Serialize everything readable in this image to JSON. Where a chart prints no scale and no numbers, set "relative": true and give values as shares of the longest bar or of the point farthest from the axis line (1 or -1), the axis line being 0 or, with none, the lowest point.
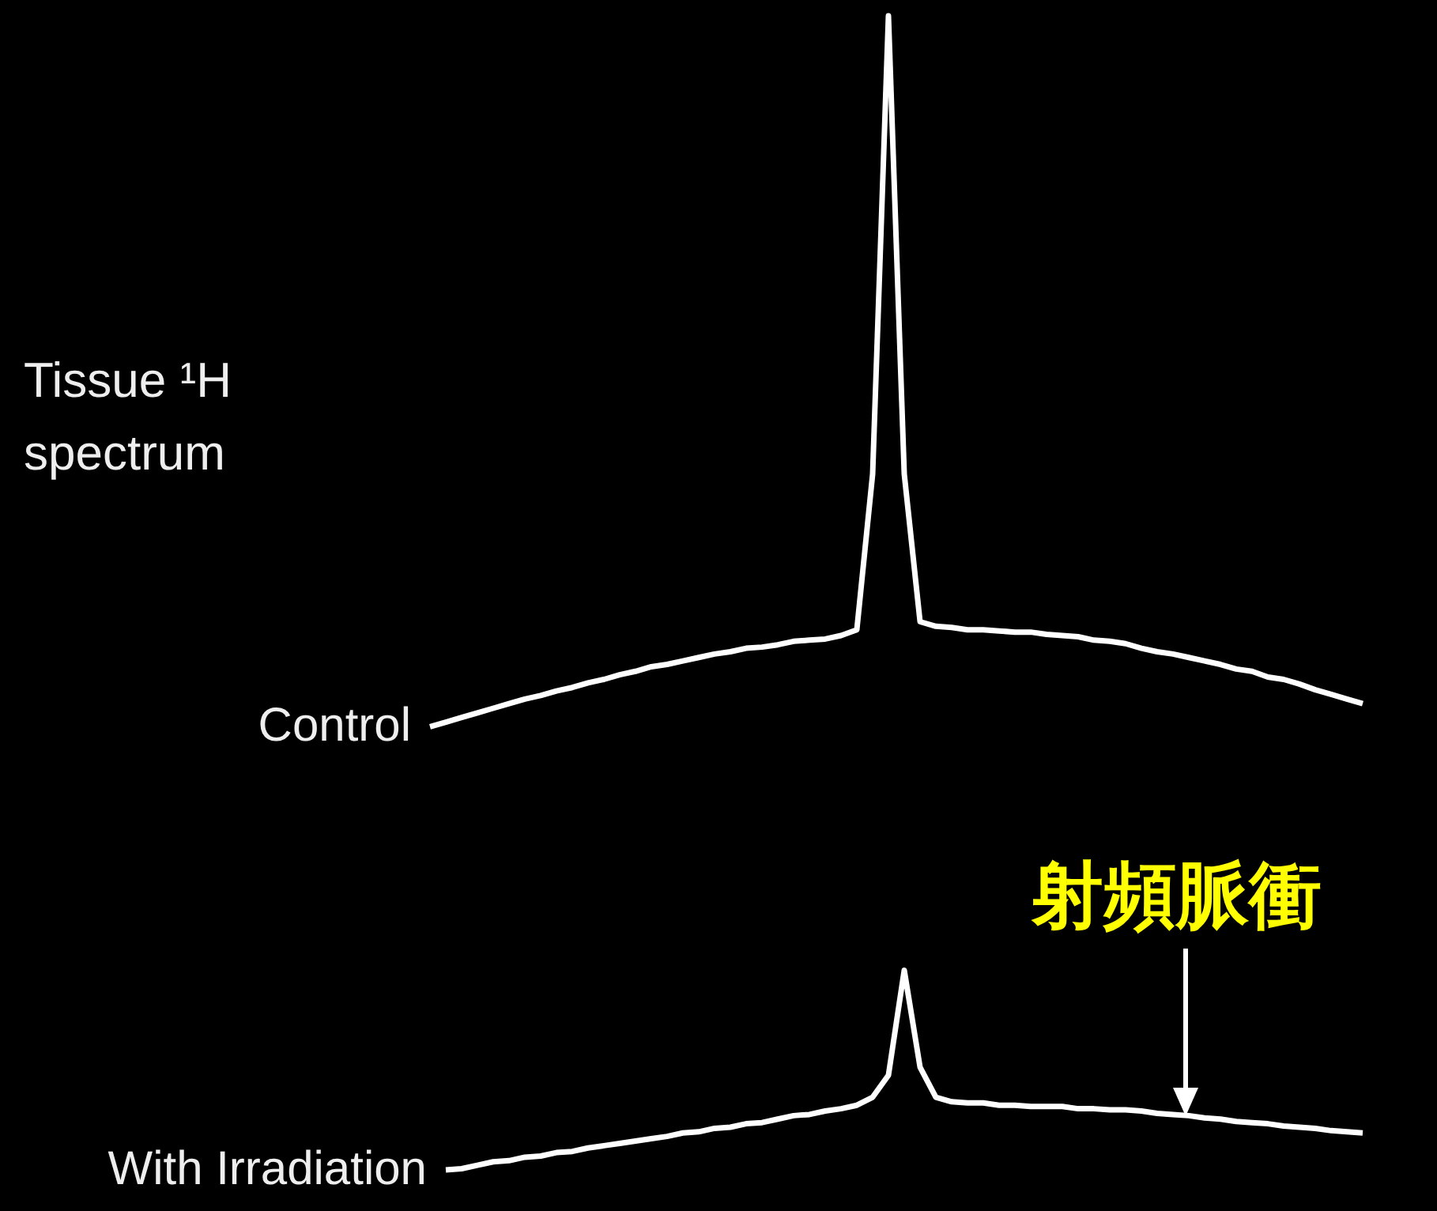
{
  "chart_data": {
    "type": "line",
    "title": "Tissue ¹H spectrum",
    "relative": true,
    "categories": [
      null,
      null,
      null,
      null,
      null,
      null,
      null,
      null,
      null,
      null,
      null,
      null,
      null,
      null,
      null,
      null,
      null,
      null,
      null,
      null,
      null,
      null,
      null,
      null,
      null,
      null,
      null,
      null,
      null,
      null,
      null,
      null,
      null,
      null,
      null,
      null,
      null,
      null,
      null,
      null,
      null,
      null,
      null,
      null,
      null,
      null,
      null,
      null,
      null,
      null,
      null,
      null,
      null,
      null,
      null,
      null,
      null,
      null,
      null,
      null
    ],
    "series": [
      {
        "name": "Control",
        "color": "#ffffff",
        "values": [
          0.384,
          0.388,
          0.392,
          0.396,
          0.4,
          0.404,
          0.408,
          0.411,
          0.415,
          0.418,
          0.422,
          0.425,
          0.429,
          0.432,
          0.436,
          0.438,
          0.441,
          0.444,
          0.447,
          0.449,
          0.452,
          0.453,
          0.455,
          0.458,
          0.459,
          0.46,
          0.463,
          0.468,
          0.603,
          1,
          0.603,
          0.475,
          0.471,
          0.47,
          0.468,
          0.468,
          0.467,
          0.466,
          0.466,
          0.464,
          0.463,
          0.462,
          0.459,
          0.458,
          0.456,
          0.452,
          0.449,
          0.447,
          0.444,
          0.441,
          0.438,
          0.434,
          0.432,
          0.427,
          0.425,
          0.421,
          0.416,
          0.412,
          0.408,
          0.404
        ]
      },
      {
        "name": "With Irradiation",
        "color": "#ffffff",
        "values": [
          null,
          0,
          0.001,
          0.004,
          0.007,
          0.008,
          0.011,
          0.012,
          0.015,
          0.016,
          0.019,
          0.021,
          0.023,
          0.025,
          0.027,
          0.029,
          0.032,
          0.033,
          0.036,
          0.037,
          0.04,
          0.041,
          0.044,
          0.047,
          0.048,
          0.051,
          0.053,
          0.056,
          0.063,
          0.082,
          0.173,
          0.089,
          0.063,
          0.059,
          0.058,
          0.058,
          0.056,
          0.056,
          0.055,
          0.055,
          0.055,
          0.053,
          0.053,
          0.052,
          0.052,
          0.051,
          0.049,
          0.048,
          0.047,
          0.045,
          0.044,
          0.042,
          0.041,
          0.04,
          0.038,
          0.037,
          0.036,
          0.034,
          0.033,
          0.032
        ]
      }
    ],
    "annotations": [
      "射頻脈衝"
    ]
  }
}
